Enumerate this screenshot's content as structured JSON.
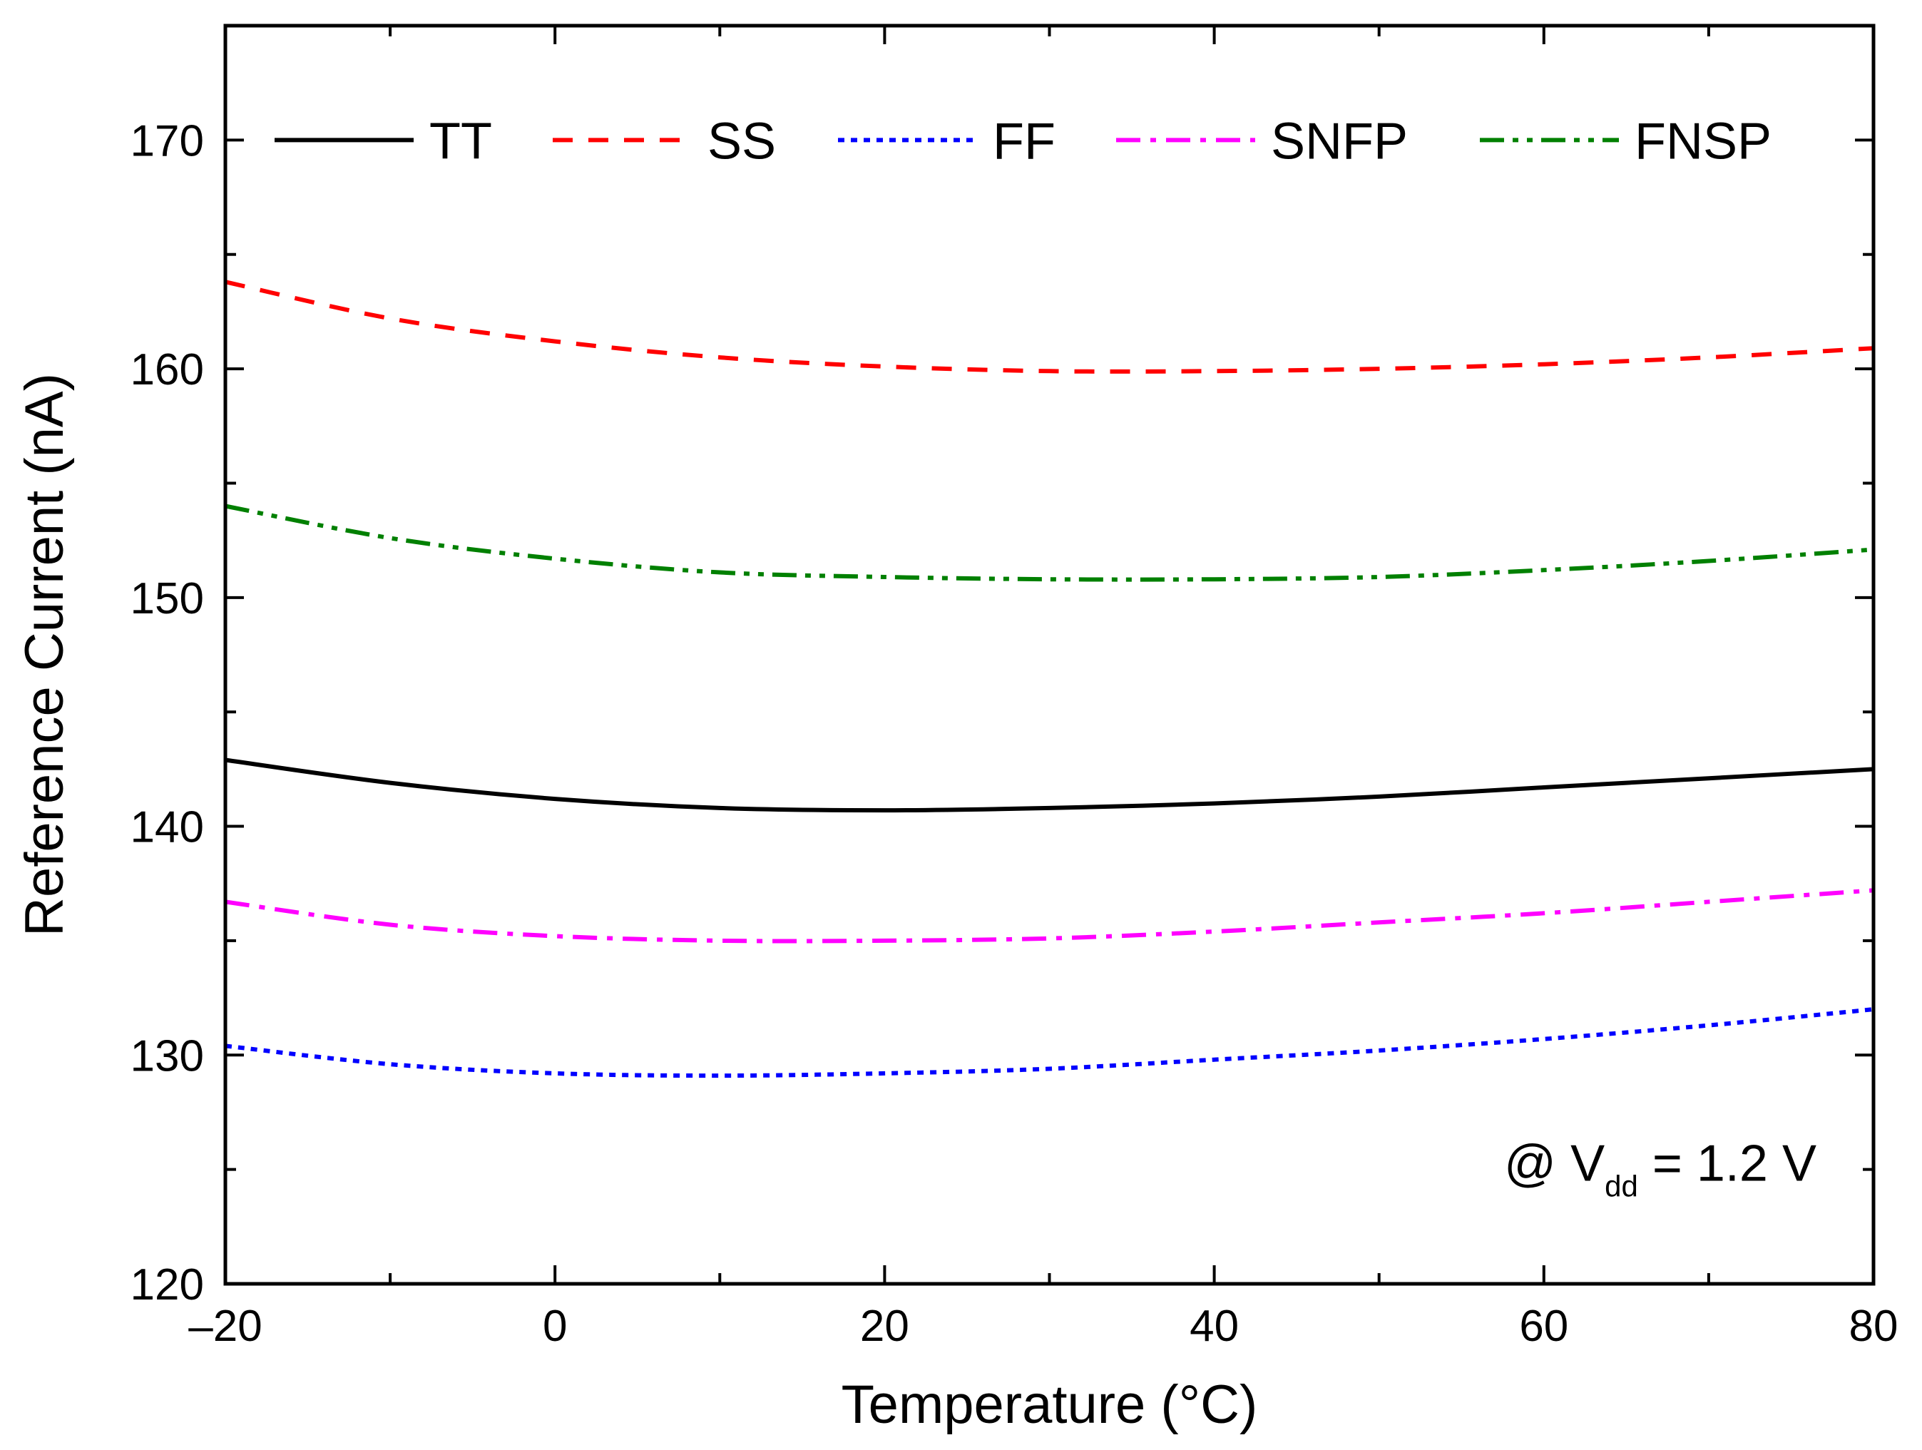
{
  "chart_data": {
    "type": "line",
    "xlabel": "Temperature (°C)",
    "ylabel": "Reference Current (nA)",
    "xlim": [
      -20,
      80
    ],
    "ylim": [
      120,
      175
    ],
    "xticks": [
      -20,
      0,
      20,
      40,
      60,
      80
    ],
    "xtick_labels": [
      "–20",
      "0",
      "20",
      "40",
      "60",
      "80"
    ],
    "yticks": [
      120,
      130,
      140,
      150,
      160,
      170
    ],
    "x_minor_step": 10,
    "y_minor_step": 5,
    "grid": false,
    "legend_position": "top",
    "annotation": {
      "prefix": "@ V",
      "subscript": "dd",
      "suffix": " = 1.2 V",
      "position": "bottom-right"
    },
    "x": [
      -20,
      -10,
      0,
      10,
      20,
      30,
      40,
      50,
      60,
      70,
      80
    ],
    "series": [
      {
        "name": "TT",
        "color": "#000000",
        "style": "solid",
        "values": [
          142.9,
          141.9,
          141.2,
          140.8,
          140.7,
          140.8,
          141.0,
          141.3,
          141.7,
          142.1,
          142.5
        ]
      },
      {
        "name": "SS",
        "color": "#ff0000",
        "style": "dash",
        "values": [
          163.8,
          162.2,
          161.2,
          160.5,
          160.1,
          159.9,
          159.9,
          160.0,
          160.2,
          160.5,
          160.9
        ]
      },
      {
        "name": "FF",
        "color": "#0000ff",
        "style": "dot",
        "values": [
          130.4,
          129.6,
          129.2,
          129.1,
          129.2,
          129.4,
          129.8,
          130.2,
          130.7,
          131.3,
          132.0
        ]
      },
      {
        "name": "SNFP",
        "color": "#ff00ff",
        "style": "dashdot",
        "values": [
          136.7,
          135.7,
          135.2,
          135.0,
          135.0,
          135.1,
          135.4,
          135.8,
          136.2,
          136.7,
          137.2
        ]
      },
      {
        "name": "FNSP",
        "color": "#008000",
        "style": "dashdotdot",
        "values": [
          154.0,
          152.6,
          151.7,
          151.1,
          150.9,
          150.8,
          150.8,
          150.9,
          151.2,
          151.6,
          152.1
        ]
      }
    ]
  }
}
